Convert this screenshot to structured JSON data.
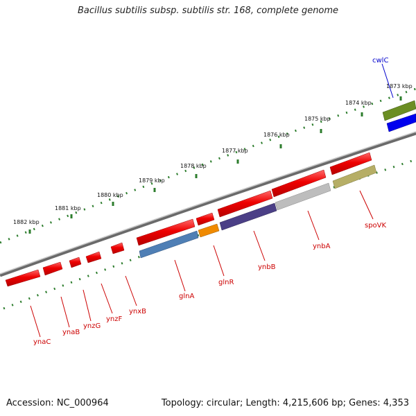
{
  "title": "Bacillus subtilis subsp. subtilis str. 168, complete genome",
  "accession": "Accession: NC_000964",
  "info": "Topology: circular; Length: 4,215,606 bp; Genes: 4,353",
  "kbp_labels": [
    "1882 kbp",
    "1881 kbp",
    "1880 kbp",
    "1879 kbp",
    "1878 kbp",
    "1877 kbp",
    "1876 kbp",
    "1875 kbp",
    "1874 kbp",
    "1873 kbp"
  ],
  "gene_labels": [
    "ynaC",
    "ynaB",
    "ynzG",
    "ynzF",
    "ynxB",
    "glnA",
    "glnR",
    "ynbB",
    "ynbA",
    "spoVK",
    "cwlC"
  ],
  "colors": {
    "gene_arrow": "#ee0000",
    "backbone": "#888888",
    "tick": "#2d7d2d",
    "label_red": "#cc0000",
    "label_blue": "#0000cc",
    "glnA_feature": "#4f7fb5",
    "glnR_feature": "#f08a00",
    "ynbB_feature": "#4b3f86",
    "ynbA_feature": "#bdbdbd",
    "spoVK_feature": "#b6ae66",
    "cwlC_top": "#6b8e23",
    "cwlC_bottom": "#0000ee"
  }
}
